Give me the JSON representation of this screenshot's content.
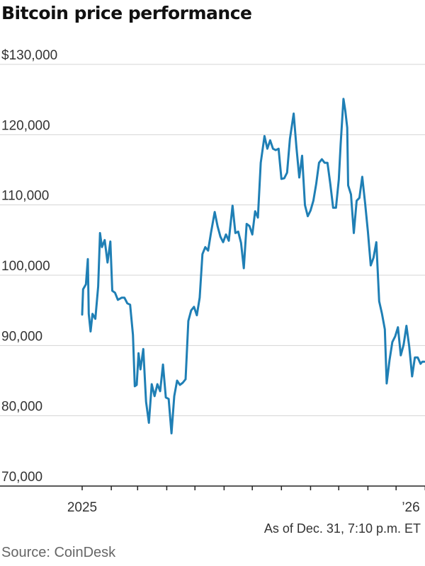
{
  "title": "Bitcoin price performance",
  "note": "As of Dec. 31, 7:10 p.m. ET",
  "source": "Source: CoinDesk",
  "colors": {
    "line": "#1f7fb5",
    "grid": "#d4d4d4",
    "axis": "#222222"
  },
  "chart_data": {
    "type": "line",
    "title": "Bitcoin price performance",
    "ylim": [
      70000,
      130000
    ],
    "y_ticks": [
      {
        "value": 130000,
        "label": "$130,000"
      },
      {
        "value": 120000,
        "label": "120,000"
      },
      {
        "value": 110000,
        "label": "110,000"
      },
      {
        "value": 100000,
        "label": "100,000"
      },
      {
        "value": 90000,
        "label": "90,000"
      },
      {
        "value": 80000,
        "label": "80,000"
      },
      {
        "value": 70000,
        "label": "70,000"
      }
    ],
    "x_tick_labels": [
      {
        "date": "2025-01-01",
        "label": "2025"
      },
      {
        "date": "2026-01-01",
        "label": "’26"
      }
    ],
    "grid": true,
    "series": [
      {
        "x": [
          "2025-01-01",
          "2025-01-02",
          "2025-01-05",
          "2025-01-07",
          "2025-01-08",
          "2025-01-10",
          "2025-01-12",
          "2025-01-15",
          "2025-01-18",
          "2025-01-20",
          "2025-01-22",
          "2025-01-25",
          "2025-01-28",
          "2025-01-31",
          "2025-02-02",
          "2025-02-05",
          "2025-02-08",
          "2025-02-12",
          "2025-02-15",
          "2025-02-18",
          "2025-02-21",
          "2025-02-24",
          "2025-02-26",
          "2025-02-28",
          "2025-03-02",
          "2025-03-04",
          "2025-03-07",
          "2025-03-10",
          "2025-03-13",
          "2025-03-16",
          "2025-03-19",
          "2025-03-22",
          "2025-03-25",
          "2025-03-28",
          "2025-03-31",
          "2025-04-03",
          "2025-04-06",
          "2025-04-09",
          "2025-04-12",
          "2025-04-15",
          "2025-04-18",
          "2025-04-21",
          "2025-04-24",
          "2025-04-27",
          "2025-04-30",
          "2025-05-03",
          "2025-05-06",
          "2025-05-09",
          "2025-05-12",
          "2025-05-15",
          "2025-05-18",
          "2025-05-22",
          "2025-05-25",
          "2025-05-28",
          "2025-05-31",
          "2025-06-03",
          "2025-06-06",
          "2025-06-10",
          "2025-06-13",
          "2025-06-16",
          "2025-06-19",
          "2025-06-22",
          "2025-06-25",
          "2025-06-28",
          "2025-07-01",
          "2025-07-04",
          "2025-07-07",
          "2025-07-10",
          "2025-07-14",
          "2025-07-17",
          "2025-07-20",
          "2025-07-23",
          "2025-07-26",
          "2025-07-29",
          "2025-08-01",
          "2025-08-04",
          "2025-08-07",
          "2025-08-10",
          "2025-08-14",
          "2025-08-17",
          "2025-08-20",
          "2025-08-23",
          "2025-08-26",
          "2025-08-29",
          "2025-09-01",
          "2025-09-04",
          "2025-09-07",
          "2025-09-10",
          "2025-09-13",
          "2025-09-16",
          "2025-09-19",
          "2025-09-22",
          "2025-09-25",
          "2025-09-28",
          "2025-10-01",
          "2025-10-03",
          "2025-10-06",
          "2025-10-08",
          "2025-10-10",
          "2025-10-11",
          "2025-10-14",
          "2025-10-17",
          "2025-10-20",
          "2025-10-23",
          "2025-10-26",
          "2025-10-29",
          "2025-11-01",
          "2025-11-04",
          "2025-11-07",
          "2025-11-10",
          "2025-11-13",
          "2025-11-16",
          "2025-11-19",
          "2025-11-21",
          "2025-11-24",
          "2025-11-27",
          "2025-11-30",
          "2025-12-03",
          "2025-12-06",
          "2025-12-09",
          "2025-12-12",
          "2025-12-15",
          "2025-12-18",
          "2025-12-21",
          "2025-12-24",
          "2025-12-27",
          "2025-12-29",
          "2025-12-31"
        ],
        "y": [
          94400,
          98000,
          98700,
          102300,
          94500,
          92000,
          94500,
          93800,
          98400,
          106000,
          104000,
          105000,
          101800,
          104800,
          97800,
          97500,
          96500,
          96800,
          96800,
          96000,
          95800,
          91500,
          84200,
          84400,
          88900,
          86600,
          89500,
          82000,
          79000,
          84500,
          82800,
          84500,
          83500,
          87300,
          82600,
          82400,
          77500,
          82800,
          85000,
          84400,
          84700,
          85200,
          93500,
          95000,
          95500,
          94300,
          96800,
          103000,
          104000,
          103500,
          106000,
          109000,
          107000,
          105500,
          104700,
          105800,
          104900,
          109900,
          106000,
          106200,
          104600,
          101000,
          107300,
          107000,
          105800,
          109100,
          108200,
          116000,
          119800,
          118000,
          119200,
          118000,
          117800,
          118000,
          113700,
          113800,
          114600,
          119400,
          123000,
          118200,
          113900,
          117000,
          110000,
          108400,
          109200,
          110600,
          113000,
          116000,
          116500,
          116000,
          116000,
          113000,
          109600,
          109600,
          113600,
          118600,
          125100,
          123400,
          121000,
          112800,
          111500,
          106000,
          110600,
          111000,
          114000,
          110300,
          106200,
          101400,
          102500,
          104700,
          96300,
          94500,
          92300,
          84600,
          87900,
          90500,
          91300,
          92600,
          88600,
          90100,
          92800,
          89800,
          85600,
          88300,
          88300,
          87400,
          87700,
          87700
        ]
      }
    ]
  }
}
